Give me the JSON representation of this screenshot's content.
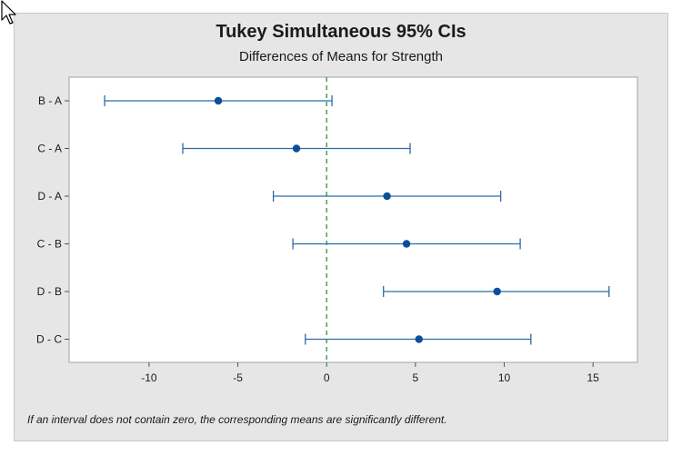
{
  "chart_data": {
    "type": "interval",
    "title": "Tukey Simultaneous 95% CIs",
    "subtitle": "Differences of Means for Strength",
    "footnote": "If an interval does not contain zero, the corresponding means are significantly different.",
    "xlim": [
      -14.5,
      17.5
    ],
    "xticks": [
      -10,
      -5,
      0,
      5,
      10,
      15
    ],
    "xtick_labels": [
      "-10",
      "-5",
      "0",
      "5",
      "10",
      "15"
    ],
    "reference_line": 0,
    "grid": false,
    "categories": [
      "B - A",
      "C - A",
      "D - A",
      "C - B",
      "D - B",
      "D - C"
    ],
    "series": [
      {
        "estimate": [
          -6.1,
          -1.7,
          3.4,
          4.5,
          9.6,
          5.2
        ],
        "lower": [
          -12.5,
          -8.1,
          -3.0,
          -1.9,
          3.2,
          -1.2
        ],
        "upper": [
          0.3,
          4.7,
          9.8,
          10.9,
          15.9,
          11.5
        ]
      }
    ],
    "colors": {
      "interval": "#2c6aa8",
      "point": "#0a4f9c",
      "reference": "#2e9e4a",
      "plot_bg": "#ffffff",
      "frame_bg": "#e6e6e6"
    }
  }
}
